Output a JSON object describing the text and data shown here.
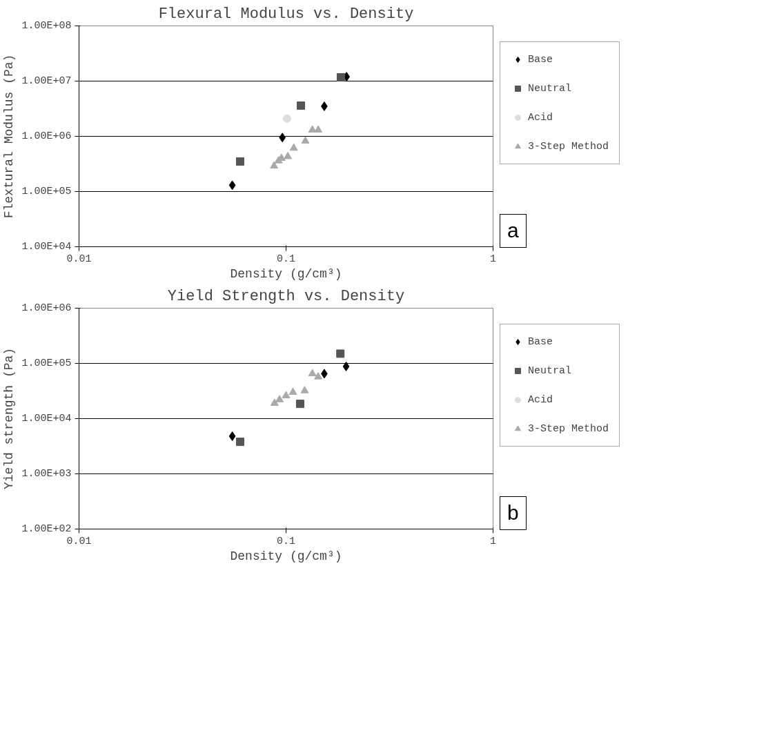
{
  "chart_data": [
    {
      "type": "scatter",
      "title": "Flexural Modulus vs. Density",
      "xlabel": "Density (g/cm³)",
      "ylabel": "Flextural Modulus (Pa)",
      "log": "xy",
      "grid": "y",
      "legend": "right",
      "annotations": [
        "a"
      ],
      "xlim": [
        0.01,
        1
      ],
      "xticks": [
        0.01,
        0.1,
        1
      ],
      "ylim": [
        10000,
        100000000
      ],
      "yticks": [
        {
          "value": 10000,
          "label": "1.00E+04"
        },
        {
          "value": 100000,
          "label": "1.00E+05"
        },
        {
          "value": 1000000,
          "label": "1.00E+06"
        },
        {
          "value": 10000000,
          "label": "1.00E+07"
        },
        {
          "value": 100000000,
          "label": "1.00E+08"
        }
      ],
      "series": [
        {
          "name": "Base",
          "color": "#000000",
          "marker": "diamond",
          "x": [
            0.055,
            0.096,
            0.153,
            0.196
          ],
          "values": [
            130000,
            950000,
            3500000,
            12000000
          ]
        },
        {
          "name": "Neutral",
          "color": "#555555",
          "marker": "square",
          "x": [
            0.06,
            0.118,
            0.184
          ],
          "values": [
            350000,
            3600000,
            11700000
          ]
        },
        {
          "name": "Acid",
          "color": "#dddddd",
          "marker": "circle",
          "x": [
            0.101
          ],
          "values": [
            2100000
          ]
        },
        {
          "name": "3-Step Method",
          "color": "#aaaaaa",
          "marker": "triangle",
          "x": [
            0.0875,
            0.092,
            0.095,
            0.102,
            0.109,
            0.124,
            0.134,
            0.143
          ],
          "values": [
            290000,
            360000,
            400000,
            430000,
            610000,
            820000,
            1300000,
            1300000
          ]
        }
      ]
    },
    {
      "type": "scatter",
      "title": "Yield Strength vs. Density",
      "xlabel": "Density (g/cm³)",
      "ylabel": "Yield strength (Pa)",
      "log": "xy",
      "grid": "y",
      "legend": "right",
      "annotations": [
        "b"
      ],
      "xlim": [
        0.01,
        1
      ],
      "xticks": [
        0.01,
        0.1,
        1
      ],
      "ylim": [
        100,
        1000000
      ],
      "yticks": [
        {
          "value": 100,
          "label": "1.00E+02"
        },
        {
          "value": 1000,
          "label": "1.00E+03"
        },
        {
          "value": 10000,
          "label": "1.00E+04"
        },
        {
          "value": 100000,
          "label": "1.00E+05"
        },
        {
          "value": 1000000,
          "label": "1.00E+06"
        }
      ],
      "series": [
        {
          "name": "Base",
          "color": "#000000",
          "marker": "diamond",
          "x": [
            0.055,
            0.153,
            0.195
          ],
          "values": [
            4800,
            65000,
            88000
          ]
        },
        {
          "name": "Neutral",
          "color": "#555555",
          "marker": "square",
          "x": [
            0.06,
            0.117,
            0.183
          ],
          "values": [
            3800,
            18500,
            150000
          ]
        },
        {
          "name": "Acid",
          "color": "#dddddd",
          "marker": "circle"
        },
        {
          "name": "3-Step Method",
          "color": "#aaaaaa",
          "marker": "triangle",
          "x": [
            0.088,
            0.093,
            0.1,
            0.108,
            0.123,
            0.134,
            0.143
          ],
          "values": [
            19000,
            22000,
            26000,
            30000,
            32000,
            65000,
            57000
          ]
        }
      ]
    }
  ]
}
